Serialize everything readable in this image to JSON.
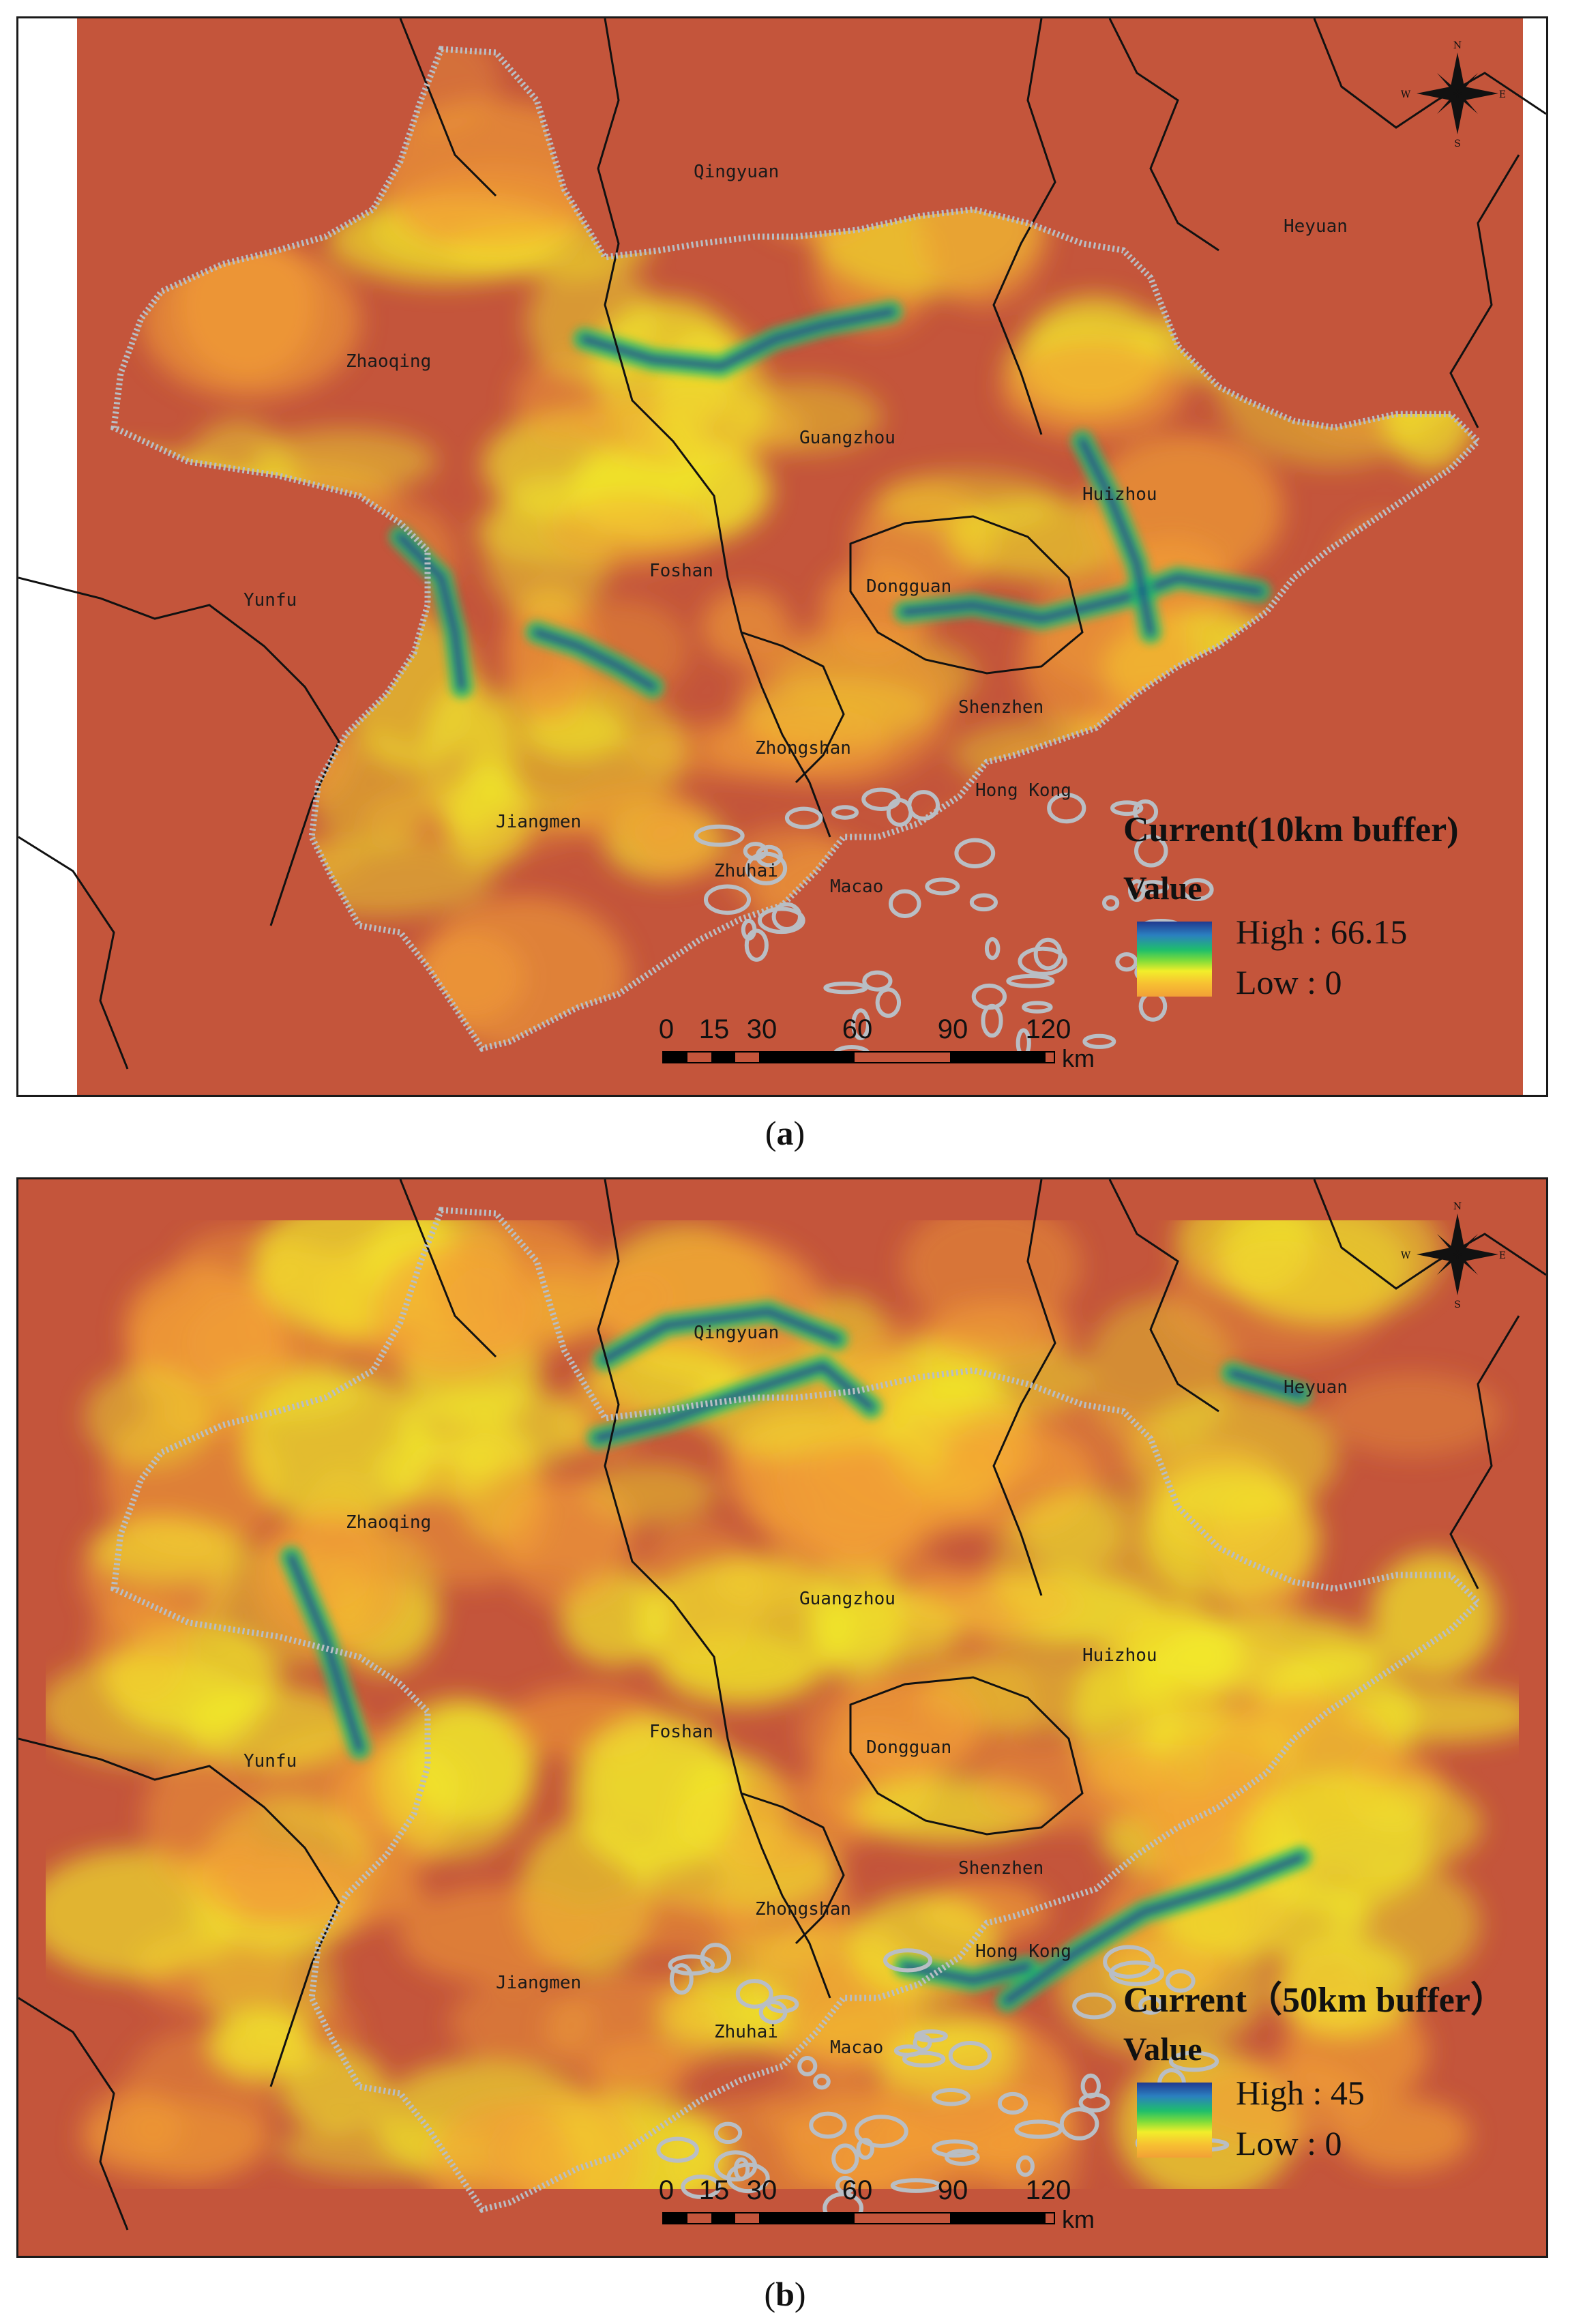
{
  "panels": [
    {
      "id": "a",
      "caption_letter": "a",
      "legend": {
        "title": "Current(10km buffer)",
        "subtitle": "Value",
        "high_label": "High : 66.15",
        "low_label": "Low : 0"
      },
      "places": [
        "Qingyuan",
        "Heyuan",
        "Zhaoqing",
        "Guangzhou",
        "Huizhou",
        "Yunfu",
        "Foshan",
        "Dongguan",
        "Shenzhen",
        "Zhongshan",
        "Hong Kong",
        "Jiangmen",
        "Zhuhai",
        "Macao"
      ]
    },
    {
      "id": "b",
      "caption_letter": "b",
      "legend": {
        "title": "Current（50km buffer）",
        "subtitle": "Value",
        "high_label": "High : 45",
        "low_label": "Low : 0"
      },
      "places": [
        "Qingyuan",
        "Heyuan",
        "Zhaoqing",
        "Guangzhou",
        "Huizhou",
        "Yunfu",
        "Foshan",
        "Dongguan",
        "Shenzhen",
        "Zhongshan",
        "Hong Kong",
        "Jiangmen",
        "Zhuhai",
        "Macao"
      ]
    }
  ],
  "scale_bar": {
    "ticks": [
      "0",
      "15",
      "30",
      "60",
      "90",
      "120"
    ],
    "unit": "km"
  },
  "compass": {
    "n": "N",
    "s": "S",
    "e": "E",
    "w": "W"
  },
  "colors": {
    "background_raster": "#c4553b",
    "low": "#f2a036",
    "mid": "#f2ee2a",
    "green": "#1fbf6a",
    "high": "#203a8f",
    "region_outline": "#b9bec4",
    "admin_line": "#111111"
  }
}
